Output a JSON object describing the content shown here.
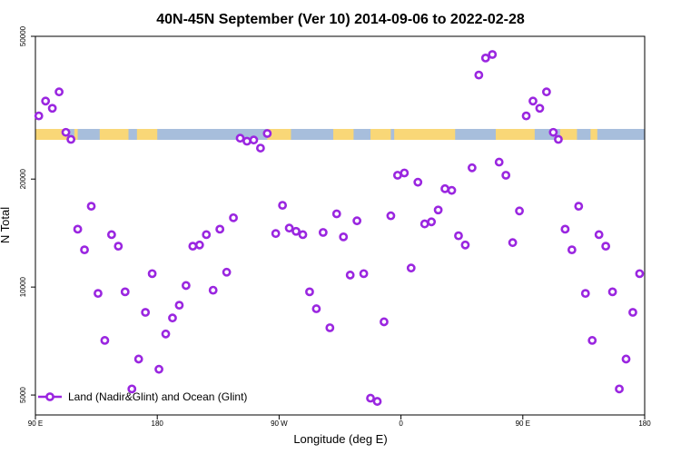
{
  "chart_data": {
    "type": "scatter",
    "title": "40N-45N September (Ver 10)   2014-09-06 to 2022-02-28",
    "xlabel": "Longitude (deg E)",
    "ylabel": "N Total",
    "xlim": [
      90,
      450
    ],
    "ylim": [
      4400,
      50000
    ],
    "yscale": "log",
    "x_ticks": [
      {
        "value": 90,
        "label": "90 E"
      },
      {
        "value": 162,
        "label": "180"
      },
      {
        "value": 234,
        "label": "90 W"
      },
      {
        "value": 306,
        "label": "0"
      },
      {
        "value": 378,
        "label": "90 E"
      },
      {
        "value": 450,
        "label": "180"
      }
    ],
    "y_ticks": [
      {
        "value": 5000,
        "label": "5000"
      },
      {
        "value": 10000,
        "label": "10000"
      },
      {
        "value": 20000,
        "label": "20000"
      },
      {
        "value": 50000,
        "label": "50000"
      }
    ],
    "legend": {
      "position": "bottom-left"
    },
    "series": [
      {
        "name": "Land (Nadir&Glint) and Ocean (Glint)",
        "color": "#9a26e0",
        "marker": "open-circle",
        "points": [
          [
            92,
            30000
          ],
          [
            96,
            33000
          ],
          [
            100,
            31500
          ],
          [
            104,
            35000
          ],
          [
            108,
            27000
          ],
          [
            111,
            25800
          ],
          [
            115,
            14500
          ],
          [
            119,
            12700
          ],
          [
            123,
            16800
          ],
          [
            127,
            9600
          ],
          [
            131,
            7100
          ],
          [
            135,
            14000
          ],
          [
            139,
            13000
          ],
          [
            143,
            9700
          ],
          [
            147,
            5200
          ],
          [
            151,
            6300
          ],
          [
            155,
            8500
          ],
          [
            159,
            10900
          ],
          [
            163,
            5900
          ],
          [
            167,
            7400
          ],
          [
            171,
            8200
          ],
          [
            175,
            8900
          ],
          [
            179,
            10100
          ],
          [
            183,
            13000
          ],
          [
            187,
            13100
          ],
          [
            191,
            14000
          ],
          [
            195,
            9800
          ],
          [
            199,
            14500
          ],
          [
            203,
            11000
          ],
          [
            207,
            15600
          ],
          [
            211,
            26000
          ],
          [
            215,
            25500
          ],
          [
            219,
            25700
          ],
          [
            223,
            24400
          ],
          [
            227,
            26800
          ],
          [
            232,
            14100
          ],
          [
            236,
            16900
          ],
          [
            240,
            14600
          ],
          [
            244,
            14300
          ],
          [
            248,
            14000
          ],
          [
            252,
            9700
          ],
          [
            256,
            8700
          ],
          [
            260,
            14200
          ],
          [
            264,
            7700
          ],
          [
            268,
            16000
          ],
          [
            272,
            13800
          ],
          [
            276,
            10800
          ],
          [
            280,
            15300
          ],
          [
            284,
            10900
          ],
          [
            288,
            4900
          ],
          [
            292,
            4800
          ],
          [
            296,
            8000
          ],
          [
            300,
            15800
          ],
          [
            304,
            20500
          ],
          [
            308,
            20800
          ],
          [
            312,
            11300
          ],
          [
            316,
            19600
          ],
          [
            320,
            15000
          ],
          [
            324,
            15200
          ],
          [
            328,
            16400
          ],
          [
            332,
            18800
          ],
          [
            336,
            18600
          ],
          [
            340,
            13900
          ],
          [
            344,
            13100
          ],
          [
            348,
            21500
          ],
          [
            352,
            39000
          ],
          [
            356,
            43500
          ],
          [
            360,
            44500
          ],
          [
            364,
            22300
          ],
          [
            368,
            20500
          ],
          [
            372,
            13300
          ],
          [
            376,
            16300
          ],
          [
            380,
            30000
          ],
          [
            384,
            33000
          ],
          [
            388,
            31500
          ],
          [
            392,
            35000
          ],
          [
            396,
            27000
          ],
          [
            399,
            25800
          ],
          [
            403,
            14500
          ],
          [
            407,
            12700
          ],
          [
            411,
            16800
          ],
          [
            415,
            9600
          ],
          [
            419,
            7100
          ],
          [
            423,
            14000
          ],
          [
            427,
            13000
          ],
          [
            431,
            9700
          ],
          [
            435,
            5200
          ],
          [
            439,
            6300
          ],
          [
            443,
            8500
          ],
          [
            447,
            10900
          ]
        ]
      }
    ]
  }
}
